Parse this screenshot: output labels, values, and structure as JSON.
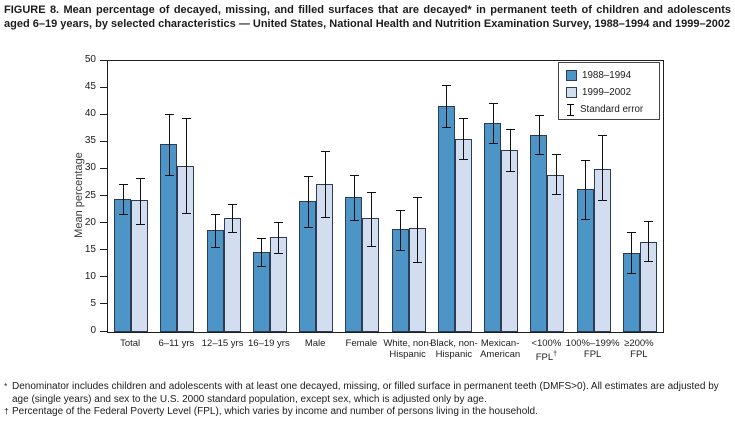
{
  "figure": {
    "title": "FIGURE 8. Mean percentage of decayed, missing, and filled surfaces that are decayed* in permanent teeth of children and adolescents aged 6–19 years, by selected characteristics — United States, National Health and Nutrition Examination Survey, 1988–1994 and 1999–2002"
  },
  "chart_data": {
    "type": "bar",
    "ylabel": "Mean percentage",
    "xlabel": "",
    "ylim": [
      0,
      50
    ],
    "yticks": [
      0,
      5,
      10,
      15,
      20,
      25,
      30,
      35,
      40,
      45,
      50
    ],
    "grid": false,
    "categories": [
      "Total",
      "6–11 yrs",
      "12–15 yrs",
      "16–19 yrs",
      "Male",
      "Female",
      "White, non-\nHispanic",
      "Black, non-\nHispanic",
      "Mexican-\nAmerican",
      "<100%\nFPL†",
      "100%–199%\nFPL",
      "≥200%\nFPL"
    ],
    "series": [
      {
        "name": "1988–1994",
        "color": "#4d95c6",
        "values": [
          24.6,
          34.6,
          18.8,
          14.7,
          24.2,
          25.0,
          19.0,
          41.7,
          38.5,
          36.3,
          26.3,
          14.6
        ],
        "err_low": [
          21.8,
          28.9,
          15.7,
          12.1,
          19.4,
          20.7,
          15.2,
          37.9,
          34.9,
          32.8,
          20.9,
          10.9
        ],
        "err_high": [
          27.3,
          40.3,
          21.8,
          17.3,
          28.8,
          29.0,
          22.6,
          45.5,
          42.2,
          40.0,
          31.7,
          18.4
        ]
      },
      {
        "name": "1999–2002",
        "color": "#d2def0",
        "values": [
          24.3,
          30.7,
          21.0,
          17.5,
          27.4,
          21.0,
          19.1,
          35.7,
          33.6,
          28.9,
          30.1,
          16.7
        ],
        "err_low": [
          20.0,
          21.9,
          18.4,
          14.6,
          21.2,
          15.8,
          13.0,
          32.0,
          29.7,
          25.4,
          24.3,
          13.1
        ],
        "err_high": [
          28.5,
          39.5,
          23.6,
          20.3,
          33.4,
          25.8,
          25.0,
          39.5,
          37.4,
          32.8,
          36.3,
          20.4
        ]
      }
    ],
    "legend": {
      "position": "top-right",
      "error_label": "Standard error"
    },
    "colors": {
      "bar_border": "#2d3c55",
      "axis": "#1f1f1f",
      "error_bar": "#111111"
    }
  },
  "footnotes": [
    {
      "marker": "*",
      "text": "Denominator includes children and adolescents with at least one decayed, missing, or filled surface in permanent teeth (DMFS>0). All estimates are adjusted by age (single years) and sex to the U.S. 2000 standard population, except sex, which is adjusted only by age."
    },
    {
      "marker": "†",
      "text": "Percentage of the Federal Poverty Level (FPL), which varies by income and number of persons living in the household."
    }
  ]
}
